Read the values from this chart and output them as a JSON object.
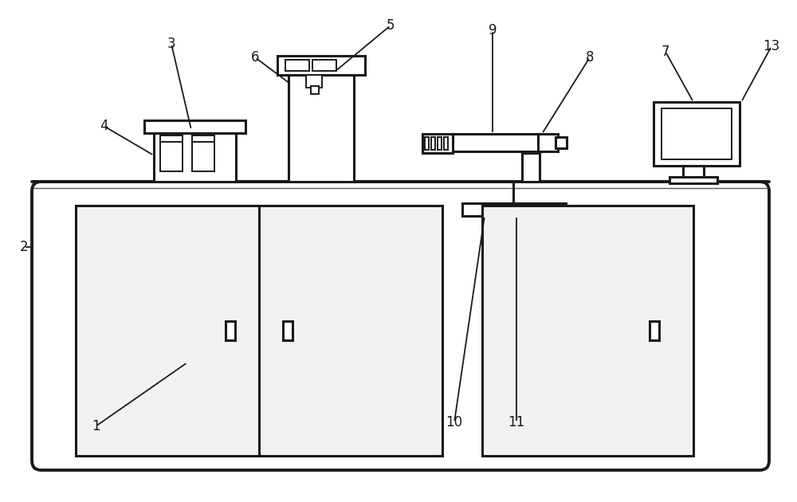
{
  "bg_color": "#ffffff",
  "line_color": "#1a1a1a",
  "lw_main": 2.2,
  "lw_thin": 1.4,
  "lw_thick": 2.8,
  "fig_width": 10.0,
  "fig_height": 6.3
}
